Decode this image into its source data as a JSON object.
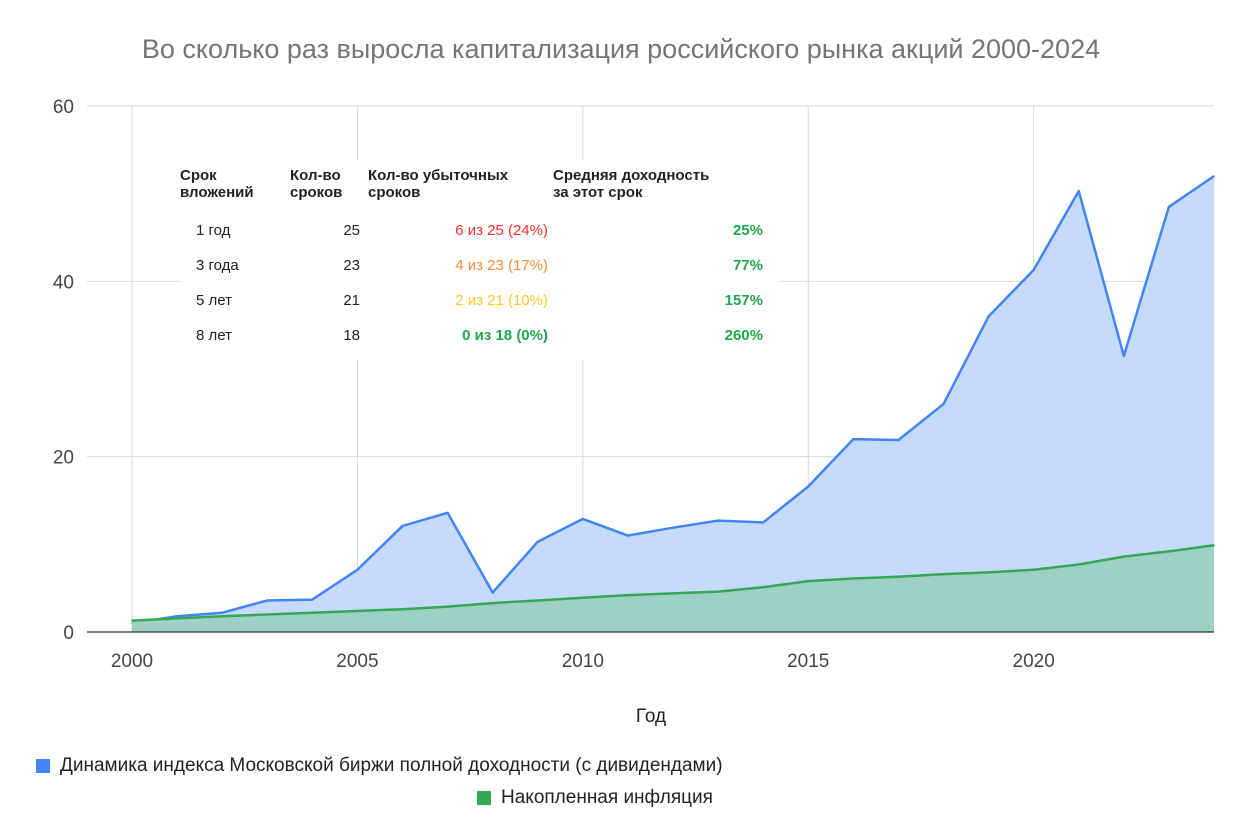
{
  "chart_data": {
    "type": "area",
    "title": "Во сколько раз выросла капитализация российского рынка акций 2000-2024",
    "xlabel": "Год",
    "ylabel": "",
    "xlim": [
      2000,
      2024
    ],
    "ylim": [
      0,
      60
    ],
    "x_ticks": [
      "2000",
      "2005",
      "2010",
      "2015",
      "2020"
    ],
    "y_ticks": [
      "0",
      "20",
      "40",
      "60"
    ],
    "grid": true,
    "legend_position": "bottom",
    "x": [
      2000,
      2001,
      2002,
      2003,
      2004,
      2005,
      2006,
      2007,
      2008,
      2009,
      2010,
      2011,
      2012,
      2013,
      2014,
      2015,
      2016,
      2017,
      2018,
      2019,
      2020,
      2021,
      2022,
      2023,
      2024
    ],
    "series": [
      {
        "name": "Динамика индекса Московской биржи полной доходности (с дивидендами)",
        "color": "#4285f4",
        "fill": "#c6dafb",
        "values": [
          1.0,
          1.8,
          2.2,
          3.6,
          3.7,
          7.1,
          12.1,
          13.6,
          4.5,
          10.3,
          12.9,
          11.0,
          11.9,
          12.7,
          12.5,
          16.6,
          22.0,
          21.9,
          26.0,
          36.0,
          41.3,
          50.3,
          31.5,
          48.5,
          52.0
        ]
      },
      {
        "name": "Накопленная инфляция",
        "color": "#34a853",
        "fill": "#9fd0c6",
        "values": [
          1.3,
          1.55,
          1.8,
          2.0,
          2.2,
          2.4,
          2.6,
          2.9,
          3.3,
          3.6,
          3.9,
          4.2,
          4.4,
          4.6,
          5.1,
          5.8,
          6.1,
          6.3,
          6.6,
          6.8,
          7.1,
          7.7,
          8.6,
          9.2,
          9.9
        ]
      }
    ],
    "table": {
      "headers": [
        [
          "Срок",
          "вложений"
        ],
        [
          "Кол-во",
          "сроков"
        ],
        [
          "Кол-во убыточных",
          "сроков"
        ],
        [
          "Средняя доходность",
          "за этот срок"
        ]
      ],
      "rows": [
        {
          "term": "1 год",
          "count": "25",
          "losses": "6 из 25 (24%)",
          "losses_color": "#ff2d2d",
          "avg": "25%"
        },
        {
          "term": "3 года",
          "count": "23",
          "losses": "4 из 23 (17%)",
          "losses_color": "#f08c3b",
          "avg": "77%"
        },
        {
          "term": "5 лет",
          "count": "21",
          "losses": "2 из 21 (10%)",
          "losses_color": "#ffc926",
          "avg": "157%"
        },
        {
          "term": "8 лет",
          "count": "18",
          "losses": "0 из 18 (0%)",
          "losses_color": "#1fa64a",
          "avg": "260%"
        }
      ],
      "avg_color": "#1fa64a"
    }
  }
}
